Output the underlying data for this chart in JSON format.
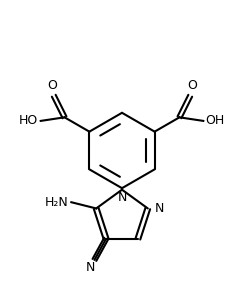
{
  "figsize": [
    2.44,
    3.04
  ],
  "dpi": 100,
  "bg_color": "#ffffff",
  "line_color": "#000000",
  "line_width": 1.5,
  "font_size": 9,
  "xlim": [
    1.0,
    9.0
  ],
  "ylim": [
    3.0,
    12.5
  ]
}
